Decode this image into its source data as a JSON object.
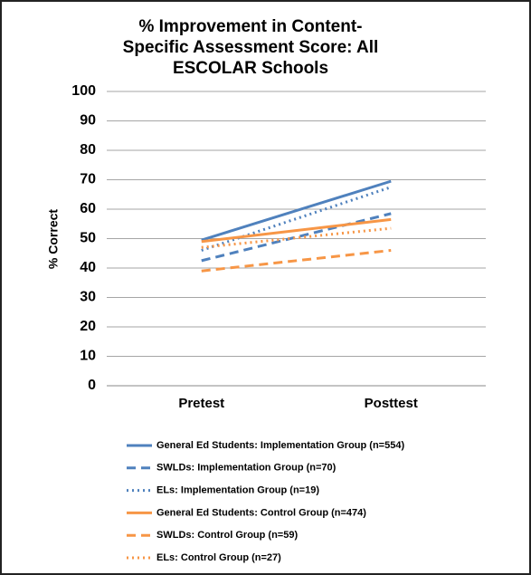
{
  "chart_data": {
    "type": "line",
    "title": "% Improvement in Content-Specific Assessment Score: All ESCOLAR Schools",
    "y_label": "% Correct",
    "categories": [
      "Pretest",
      "Posttest"
    ],
    "ylim": [
      0,
      100
    ],
    "yticks": [
      0,
      10,
      20,
      30,
      40,
      50,
      60,
      70,
      80,
      90,
      100
    ],
    "grid": true,
    "legend": "bottom",
    "series": [
      {
        "name": "General Ed Students: Implementation Group (n=554)",
        "color": "#4f81bd",
        "style": "solid",
        "values": [
          49.5,
          69.5
        ]
      },
      {
        "name": "SWLDs: Implementation Group (n=70)",
        "color": "#4f81bd",
        "style": "dashed",
        "values": [
          42.5,
          58.5
        ]
      },
      {
        "name": "ELs: Implementation Group (n=19)",
        "color": "#4f81bd",
        "style": "dotted",
        "values": [
          46,
          67.5
        ]
      },
      {
        "name": "General Ed Students: Control Group (n=474)",
        "color": "#f79646",
        "style": "solid",
        "values": [
          49,
          56.5
        ]
      },
      {
        "name": "SWLDs: Control Group (n=59)",
        "color": "#f79646",
        "style": "dashed",
        "values": [
          39,
          46
        ]
      },
      {
        "name": "ELs: Control Group (n=27)",
        "color": "#f79646",
        "style": "dotted",
        "values": [
          47,
          53.5
        ]
      }
    ]
  }
}
